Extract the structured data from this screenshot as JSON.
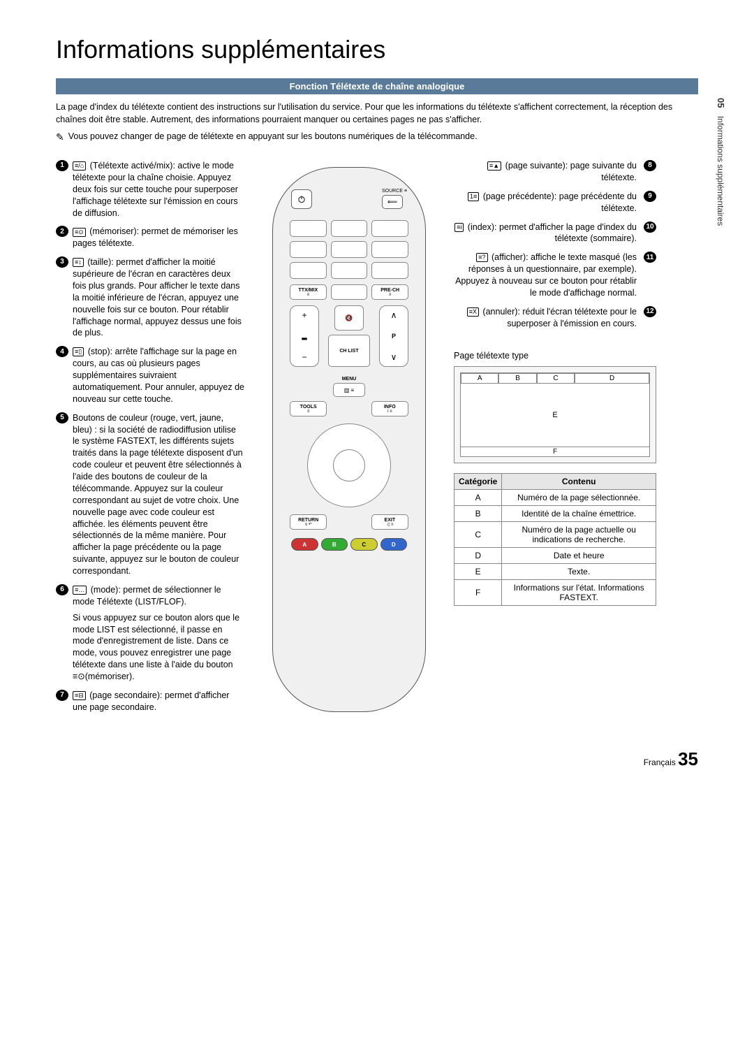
{
  "title": "Informations supplémentaires",
  "side_tab": {
    "num": "05",
    "text": "Informations supplémentaires"
  },
  "section_header": "Fonction Télétexte de chaîne analogique",
  "intro": "La page d'index du télétexte contient des instructions sur l'utilisation du service. Pour que les informations du télétexte s'affichent correctement, la réception des chaînes doit être stable. Autrement, des informations pourraient manquer ou certaines pages ne pas s'afficher.",
  "note_icon": "✎",
  "note": "Vous pouvez changer de page de télétexte en appuyant sur les boutons numériques de la télécommande.",
  "left_items": [
    {
      "n": "1",
      "icon": "≡/⌂",
      "text": "(Télétexte activé/mix): active le mode télétexte pour la chaîne choisie. Appuyez deux fois sur cette touche pour superposer l'affichage télétexte sur l'émission en cours de diffusion."
    },
    {
      "n": "2",
      "icon": "≡⊙",
      "text": "(mémoriser): permet de mémoriser les pages télétexte."
    },
    {
      "n": "3",
      "icon": "≡↕",
      "text": "(taille): permet d'afficher la moitié supérieure de l'écran en caractères deux fois plus grands. Pour afficher le texte dans la moitié inférieure de l'écran, appuyez une nouvelle fois sur ce bouton. Pour rétablir l'affichage normal, appuyez dessus une fois de plus."
    },
    {
      "n": "4",
      "icon": "≡▯",
      "text": "(stop): arrête l'affichage sur la page en cours, au cas où plusieurs pages supplémentaires suivraient automatiquement. Pour annuler, appuyez de nouveau sur cette touche."
    },
    {
      "n": "5",
      "icon": "",
      "text": "Boutons de couleur (rouge, vert, jaune, bleu) : si la société de radiodiffusion utilise le système FASTEXT, les différents sujets traités dans la page télétexte disposent d'un code couleur et peuvent être sélectionnés à l'aide des boutons de couleur de la télécommande. Appuyez sur la couleur correspondant au sujet de votre choix. Une nouvelle page avec code couleur est affichée. les éléments peuvent être sélectionnés de la même manière. Pour afficher la page précédente ou la page suivante, appuyez sur le bouton de couleur correspondant."
    },
    {
      "n": "6",
      "icon": "≡…",
      "text": "(mode): permet de sélectionner le mode Télétexte (LIST/FLOF).",
      "extra": "Si vous appuyez sur ce bouton alors que le mode LIST est sélectionné, il passe en mode d'enregistrement de liste. Dans ce mode, vous pouvez enregistrer une page télétexte dans une liste à l'aide du bouton ≡⊙(mémoriser)."
    },
    {
      "n": "7",
      "icon": "≡⊟",
      "text": "(page secondaire): permet d'afficher une page secondaire."
    }
  ],
  "right_items": [
    {
      "n": "8",
      "icon": "≡▲",
      "text": "(page suivante): page suivante du télétexte."
    },
    {
      "n": "9",
      "icon": "1≡",
      "text": "(page précédente): page précédente du télétexte."
    },
    {
      "n": "10",
      "icon": "≡i",
      "text": "(index): permet d'afficher la page d'index du télétexte (sommaire)."
    },
    {
      "n": "11",
      "icon": "≡?",
      "text": "(afficher): affiche le texte masqué (les réponses à un questionnaire, par exemple). Appuyez à nouveau sur ce bouton pour rétablir le mode d'affichage normal."
    },
    {
      "n": "12",
      "icon": "≡X",
      "text": "(annuler): réduit l'écran télétexte pour le superposer à l'émission en cours."
    }
  ],
  "remote": {
    "source": "SOURCE ≡",
    "ttx": "TTX/MIX",
    "prech": "PRE-CH",
    "chlist": "CH LIST",
    "menu": "MENU",
    "tools": "TOOLS",
    "info": "INFO",
    "return": "RETURN",
    "exit": "EXIT",
    "p": "P",
    "colors": {
      "a": "A",
      "b": "B",
      "c": "C",
      "d": "D"
    },
    "mute_icon": "🔇",
    "icon_sub": "≡"
  },
  "page_type_title": "Page télétexte type",
  "schema": {
    "a": "A",
    "b": "B",
    "c": "C",
    "d": "D",
    "e": "E",
    "f": "F"
  },
  "table": {
    "headers": {
      "cat": "Catégorie",
      "cont": "Contenu"
    },
    "rows": [
      {
        "k": "A",
        "v": "Numéro de la page sélectionnée."
      },
      {
        "k": "B",
        "v": "Identité de la chaîne émettrice."
      },
      {
        "k": "C",
        "v": "Numéro de la page actuelle ou indications de recherche."
      },
      {
        "k": "D",
        "v": "Date et heure"
      },
      {
        "k": "E",
        "v": "Texte."
      },
      {
        "k": "F",
        "v": "Informations sur l'état. Informations FASTEXT."
      }
    ]
  },
  "footer": {
    "lang": "Français",
    "page": "35"
  }
}
